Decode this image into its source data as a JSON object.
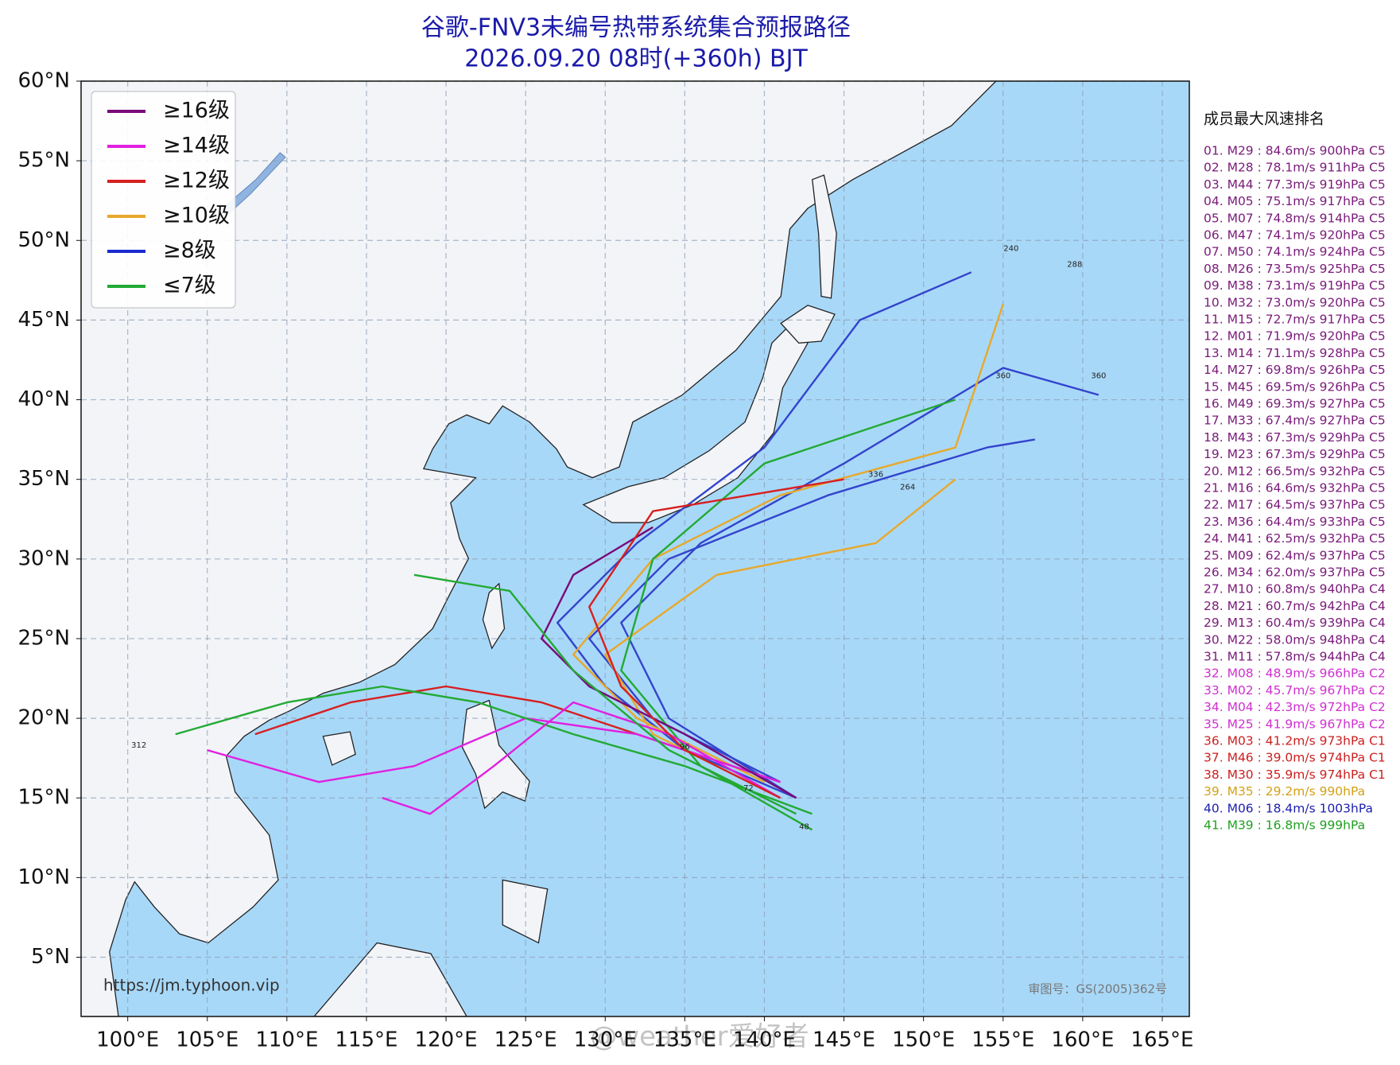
{
  "chart_data": {
    "type": "track-map",
    "title": "谷歌-FNV3未编号热带系统集合预报路径",
    "subtitle": "2026.09.20 08时(+360h) BJT",
    "xlim": [
      97.07,
      166.7
    ],
    "ylim": [
      1.28,
      60
    ],
    "xticks": [
      {
        "value": 100,
        "label": "100°E"
      },
      {
        "value": 105,
        "label": "105°E"
      },
      {
        "value": 110,
        "label": "110°E"
      },
      {
        "value": 115,
        "label": "115°E"
      },
      {
        "value": 120,
        "label": "120°E"
      },
      {
        "value": 125,
        "label": "125°E"
      },
      {
        "value": 130,
        "label": "130°E"
      },
      {
        "value": 135,
        "label": "135°E"
      },
      {
        "value": 140,
        "label": "140°E"
      },
      {
        "value": 145,
        "label": "145°E"
      },
      {
        "value": 150,
        "label": "150°E"
      },
      {
        "value": 155,
        "label": "155°E"
      },
      {
        "value": 160,
        "label": "160°E"
      },
      {
        "value": 165,
        "label": "165°E"
      }
    ],
    "yticks": [
      {
        "value": 5,
        "label": "5°N"
      },
      {
        "value": 10,
        "label": "10°N"
      },
      {
        "value": 15,
        "label": "15°N"
      },
      {
        "value": 20,
        "label": "20°N"
      },
      {
        "value": 25,
        "label": "25°N"
      },
      {
        "value": 30,
        "label": "30°N"
      },
      {
        "value": 35,
        "label": "35°N"
      },
      {
        "value": 40,
        "label": "40°N"
      },
      {
        "value": 45,
        "label": "45°N"
      },
      {
        "value": 50,
        "label": "50°N"
      },
      {
        "value": 55,
        "label": "55°N"
      },
      {
        "value": 60,
        "label": "60°N"
      }
    ],
    "grid": true,
    "legend": {
      "corner": "upper left",
      "items": [
        {
          "label": "≥16级",
          "color": "#7a0a7a"
        },
        {
          "label": "≥14级",
          "color": "#e020e0"
        },
        {
          "label": "≥12级",
          "color": "#d62020"
        },
        {
          "label": "≥10级",
          "color": "#e8a82a"
        },
        {
          "label": "≥8级",
          "color": "#1a2ad0"
        },
        {
          "label": "≤7级",
          "color": "#22aa33"
        }
      ]
    },
    "series": [
      {
        "color": "#3344cc",
        "x": [
          142,
          135,
          130,
          127,
          132,
          140,
          146,
          153
        ],
        "y": [
          15,
          18,
          22,
          26,
          31,
          37,
          45,
          48
        ]
      },
      {
        "color": "#3344cc",
        "x": [
          142,
          134,
          131,
          136,
          145,
          155,
          161
        ],
        "y": [
          15,
          20,
          26,
          31,
          36,
          42,
          40.3
        ]
      },
      {
        "color": "#3344cc",
        "x": [
          141,
          133,
          129,
          134,
          144,
          154,
          157
        ],
        "y": [
          16,
          20,
          25,
          30,
          34,
          37,
          37.5
        ]
      },
      {
        "color": "#e8a82a",
        "x": [
          140,
          132,
          128,
          133,
          141,
          152,
          155
        ],
        "y": [
          16,
          20,
          24,
          30,
          34,
          37,
          46
        ]
      },
      {
        "color": "#e8a82a",
        "x": [
          141,
          133,
          130,
          137,
          147,
          152
        ],
        "y": [
          15,
          19,
          24,
          29,
          31,
          35
        ]
      },
      {
        "color": "#d62020",
        "x": [
          141,
          132,
          126,
          120,
          114,
          108
        ],
        "y": [
          16,
          19,
          21,
          22,
          21,
          19
        ]
      },
      {
        "color": "#e020e0",
        "x": [
          141,
          132,
          125,
          118,
          112,
          105
        ],
        "y": [
          16,
          19,
          20,
          17,
          16,
          18
        ]
      },
      {
        "color": "#22aa33",
        "x": [
          143,
          135,
          128,
          122,
          116,
          110,
          103
        ],
        "y": [
          14,
          17,
          19,
          21,
          22,
          21,
          19
        ]
      },
      {
        "color": "#22aa33",
        "x": [
          143,
          136,
          131,
          133,
          140,
          152
        ],
        "y": [
          13,
          17,
          23,
          30,
          36,
          40
        ]
      },
      {
        "color": "#7a0a7a",
        "x": [
          142,
          135,
          129,
          126,
          128,
          133
        ],
        "y": [
          15,
          19,
          22,
          25,
          29,
          32
        ]
      },
      {
        "color": "#e020e0",
        "x": [
          141,
          134,
          128,
          123,
          119,
          116
        ],
        "y": [
          15,
          19,
          21,
          17,
          14,
          15
        ]
      },
      {
        "color": "#22aa33",
        "x": [
          142,
          134,
          128,
          124,
          118
        ],
        "y": [
          14,
          18,
          23,
          28,
          29
        ]
      },
      {
        "color": "#d62020",
        "x": [
          141,
          135,
          131,
          129,
          133,
          145
        ],
        "y": [
          15,
          18,
          22,
          27,
          33,
          35
        ]
      }
    ],
    "annotations": [
      {
        "text": "240",
        "x": 155.5,
        "y": 49.5
      },
      {
        "text": "288",
        "x": 159.5,
        "y": 48.5
      },
      {
        "text": "360",
        "x": 161,
        "y": 41.5
      },
      {
        "text": "360",
        "x": 155,
        "y": 41.5
      },
      {
        "text": "264",
        "x": 149,
        "y": 34.5
      },
      {
        "text": "336",
        "x": 147,
        "y": 35.3
      },
      {
        "text": "48",
        "x": 142.5,
        "y": 13.2
      },
      {
        "text": "72",
        "x": 139,
        "y": 15.6
      },
      {
        "text": "96",
        "x": 135,
        "y": 18.2
      },
      {
        "text": "312",
        "x": 100.7,
        "y": 18.3
      }
    ],
    "source": "https://jm.typhoon.vip",
    "approval": "审图号：GS(2005)362号",
    "watermark": "@weather爱好者",
    "ranking": {
      "title": "成员最大风速排名",
      "entries": [
        {
          "text": "01. M29 : 84.6m/s 900hPa C5",
          "color": "#7a1a7a"
        },
        {
          "text": "02. M28 : 78.1m/s 911hPa C5",
          "color": "#7a1a7a"
        },
        {
          "text": "03. M44 : 77.3m/s 919hPa C5",
          "color": "#7a1a7a"
        },
        {
          "text": "04. M05 : 75.1m/s 917hPa C5",
          "color": "#7a1a7a"
        },
        {
          "text": "05. M07 : 74.8m/s 914hPa C5",
          "color": "#7a1a7a"
        },
        {
          "text": "06. M47 : 74.1m/s 920hPa C5",
          "color": "#7a1a7a"
        },
        {
          "text": "07. M50 : 74.1m/s 924hPa C5",
          "color": "#7a1a7a"
        },
        {
          "text": "08. M26 : 73.5m/s 925hPa C5",
          "color": "#7a1a7a"
        },
        {
          "text": "09. M38 : 73.1m/s 919hPa C5",
          "color": "#7a1a7a"
        },
        {
          "text": "10. M32 : 73.0m/s 920hPa C5",
          "color": "#7a1a7a"
        },
        {
          "text": "11. M15 : 72.7m/s 917hPa C5",
          "color": "#7a1a7a"
        },
        {
          "text": "12. M01 : 71.9m/s 920hPa C5",
          "color": "#7a1a7a"
        },
        {
          "text": "13. M14 : 71.1m/s 928hPa C5",
          "color": "#7a1a7a"
        },
        {
          "text": "14. M27 : 69.8m/s 926hPa C5",
          "color": "#7a1a7a"
        },
        {
          "text": "15. M45 : 69.5m/s 926hPa C5",
          "color": "#7a1a7a"
        },
        {
          "text": "16. M49 : 69.3m/s 927hPa C5",
          "color": "#7a1a7a"
        },
        {
          "text": "17. M33 : 67.4m/s 927hPa C5",
          "color": "#7a1a7a"
        },
        {
          "text": "18. M43 : 67.3m/s 929hPa C5",
          "color": "#7a1a7a"
        },
        {
          "text": "19. M23 : 67.3m/s 929hPa C5",
          "color": "#7a1a7a"
        },
        {
          "text": "20. M12 : 66.5m/s 932hPa C5",
          "color": "#7a1a7a"
        },
        {
          "text": "21. M16 : 64.6m/s 932hPa C5",
          "color": "#7a1a7a"
        },
        {
          "text": "22. M17 : 64.5m/s 937hPa C5",
          "color": "#7a1a7a"
        },
        {
          "text": "23. M36 : 64.4m/s 933hPa C5",
          "color": "#7a1a7a"
        },
        {
          "text": "24. M41 : 62.5m/s 932hPa C5",
          "color": "#7a1a7a"
        },
        {
          "text": "25. M09 : 62.4m/s 937hPa C5",
          "color": "#7a1a7a"
        },
        {
          "text": "26. M34 : 62.0m/s 937hPa C5",
          "color": "#7a1a7a"
        },
        {
          "text": "27. M10 : 60.8m/s 940hPa C4",
          "color": "#7a1a7a"
        },
        {
          "text": "28. M21 : 60.7m/s 942hPa C4",
          "color": "#7a1a7a"
        },
        {
          "text": "29. M13 : 60.4m/s 939hPa C4",
          "color": "#7a1a7a"
        },
        {
          "text": "30. M22 : 58.0m/s 948hPa C4",
          "color": "#7a1a7a"
        },
        {
          "text": "31. M11 : 57.8m/s 944hPa C4",
          "color": "#7a1a7a"
        },
        {
          "text": "32. M08 : 48.9m/s 966hPa C2",
          "color": "#d030d0"
        },
        {
          "text": "33. M02 : 45.7m/s 967hPa C2",
          "color": "#d030d0"
        },
        {
          "text": "34. M04 : 42.3m/s 972hPa C2",
          "color": "#d030d0"
        },
        {
          "text": "35. M25 : 41.9m/s 967hPa C2",
          "color": "#d030d0"
        },
        {
          "text": "36. M03 : 41.2m/s 973hPa C1",
          "color": "#cc2020"
        },
        {
          "text": "37. M46 : 39.0m/s 974hPa C1",
          "color": "#cc2020"
        },
        {
          "text": "38. M30 : 35.9m/s 974hPa C1",
          "color": "#cc2020"
        },
        {
          "text": "39. M35 : 29.2m/s 990hPa",
          "color": "#d4a017"
        },
        {
          "text": "40. M06 : 18.4m/s 1003hPa",
          "color": "#2020b0"
        },
        {
          "text": "41. M39 : 16.8m/s 999hPa",
          "color": "#20a020"
        }
      ]
    }
  }
}
